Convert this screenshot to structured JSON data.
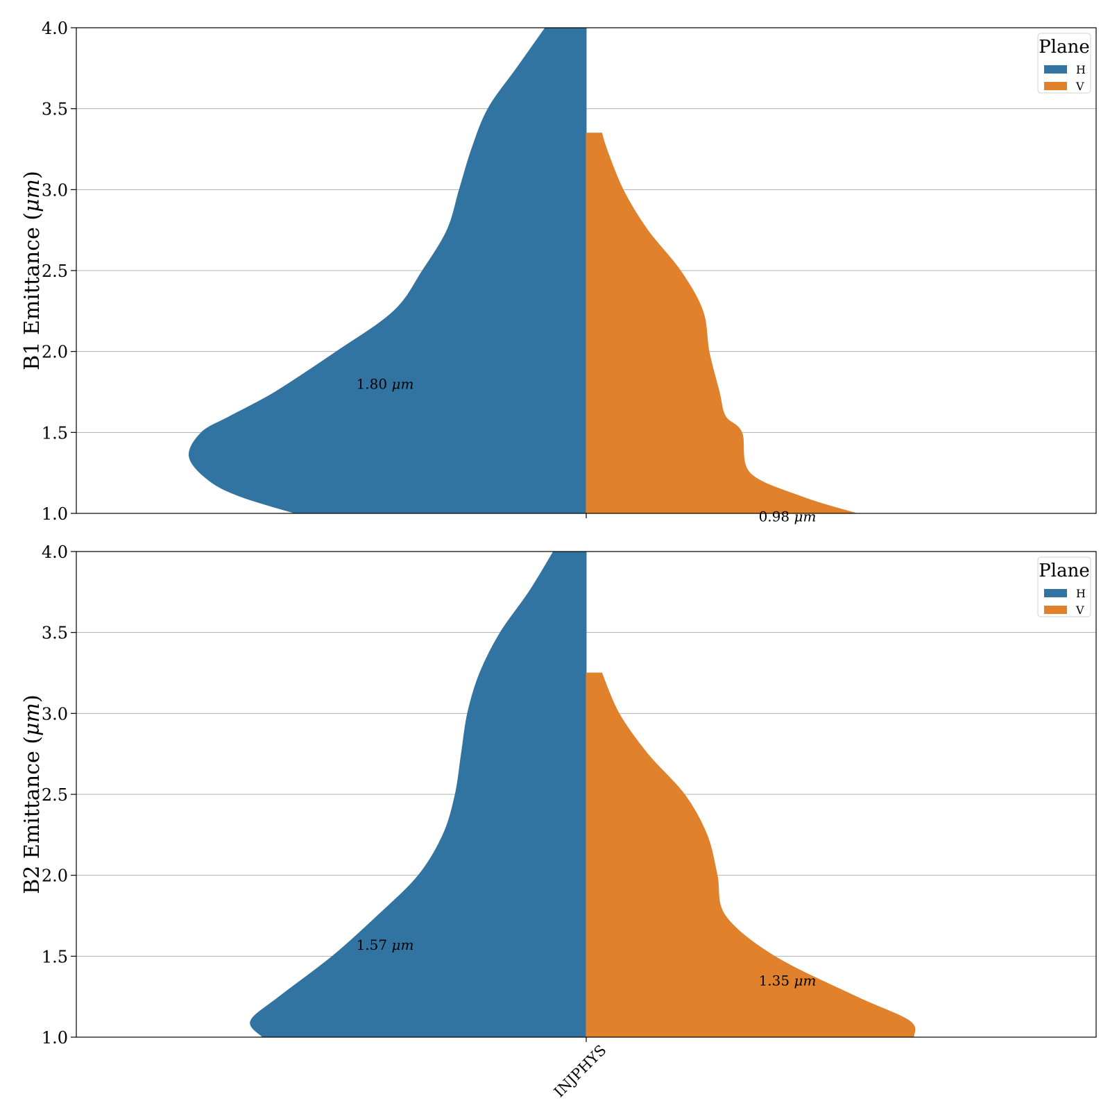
{
  "chart_data": [
    {
      "type": "violin",
      "ylabel": "B1 Emittance (μm)",
      "ylabel_text": "B1 Emittance (",
      "ylabel_unit": "μm",
      "ylabel_close": ")",
      "ylim": [
        1.0,
        4.0
      ],
      "yticks": [
        "1.0",
        "1.5",
        "2.0",
        "2.5",
        "3.0",
        "3.5",
        "4.0"
      ],
      "grid": true,
      "categories": [
        "INJPHYS"
      ],
      "show_x_labels": false,
      "legend": {
        "title": "Plane",
        "placement": "top-right"
      },
      "series": [
        {
          "name": "H",
          "color": "#3274a1",
          "side": "left",
          "median_label": "1.80",
          "median": 1.8,
          "label_y": 1.8,
          "density": [
            [
              1.0,
              0.71
            ],
            [
              1.1,
              0.84
            ],
            [
              1.2,
              0.92
            ],
            [
              1.35,
              0.97
            ],
            [
              1.5,
              0.94
            ],
            [
              1.6,
              0.87
            ],
            [
              1.75,
              0.76
            ],
            [
              2.0,
              0.61
            ],
            [
              2.25,
              0.47
            ],
            [
              2.5,
              0.4
            ],
            [
              2.75,
              0.34
            ],
            [
              3.0,
              0.31
            ],
            [
              3.25,
              0.28
            ],
            [
              3.5,
              0.24
            ],
            [
              3.75,
              0.17
            ],
            [
              4.0,
              0.1
            ]
          ]
        },
        {
          "name": "V",
          "color": "#e1812c",
          "side": "right",
          "median_label": "0.98",
          "median": 0.98,
          "label_y": 0.98,
          "density": [
            [
              1.0,
              0.66
            ],
            [
              1.1,
              0.53
            ],
            [
              1.25,
              0.4
            ],
            [
              1.5,
              0.38
            ],
            [
              1.6,
              0.34
            ],
            [
              1.75,
              0.325
            ],
            [
              2.0,
              0.3
            ],
            [
              2.25,
              0.285
            ],
            [
              2.5,
              0.23
            ],
            [
              2.75,
              0.15
            ],
            [
              3.0,
              0.09
            ],
            [
              3.25,
              0.05
            ],
            [
              3.35,
              0.038
            ]
          ]
        }
      ]
    },
    {
      "type": "violin",
      "ylabel": "B2 Emittance (μm)",
      "ylabel_text": "B2 Emittance (",
      "ylabel_unit": "μm",
      "ylabel_close": ")",
      "ylim": [
        1.0,
        4.0
      ],
      "yticks": [
        "1.0",
        "1.5",
        "2.0",
        "2.5",
        "3.0",
        "3.5",
        "4.0"
      ],
      "grid": true,
      "categories": [
        "INJPHYS"
      ],
      "show_x_labels": true,
      "legend": {
        "title": "Plane",
        "placement": "top-right"
      },
      "series": [
        {
          "name": "H",
          "color": "#3274a1",
          "side": "left",
          "median_label": "1.57",
          "median": 1.57,
          "label_y": 1.57,
          "density": [
            [
              1.0,
              0.79
            ],
            [
              1.1,
              0.82
            ],
            [
              1.25,
              0.75
            ],
            [
              1.5,
              0.62
            ],
            [
              1.75,
              0.51
            ],
            [
              2.0,
              0.41
            ],
            [
              2.25,
              0.35
            ],
            [
              2.5,
              0.32
            ],
            [
              2.75,
              0.305
            ],
            [
              3.0,
              0.29
            ],
            [
              3.25,
              0.26
            ],
            [
              3.5,
              0.21
            ],
            [
              3.75,
              0.14
            ],
            [
              4.0,
              0.08
            ]
          ]
        },
        {
          "name": "V",
          "color": "#e1812c",
          "side": "right",
          "median_label": "1.35",
          "median": 1.35,
          "label_y": 1.35,
          "density": [
            [
              1.0,
              0.8
            ],
            [
              1.1,
              0.79
            ],
            [
              1.25,
              0.66
            ],
            [
              1.5,
              0.46
            ],
            [
              1.75,
              0.34
            ],
            [
              2.0,
              0.32
            ],
            [
              2.25,
              0.295
            ],
            [
              2.5,
              0.24
            ],
            [
              2.75,
              0.15
            ],
            [
              3.0,
              0.08
            ],
            [
              3.25,
              0.038
            ]
          ]
        }
      ]
    }
  ]
}
